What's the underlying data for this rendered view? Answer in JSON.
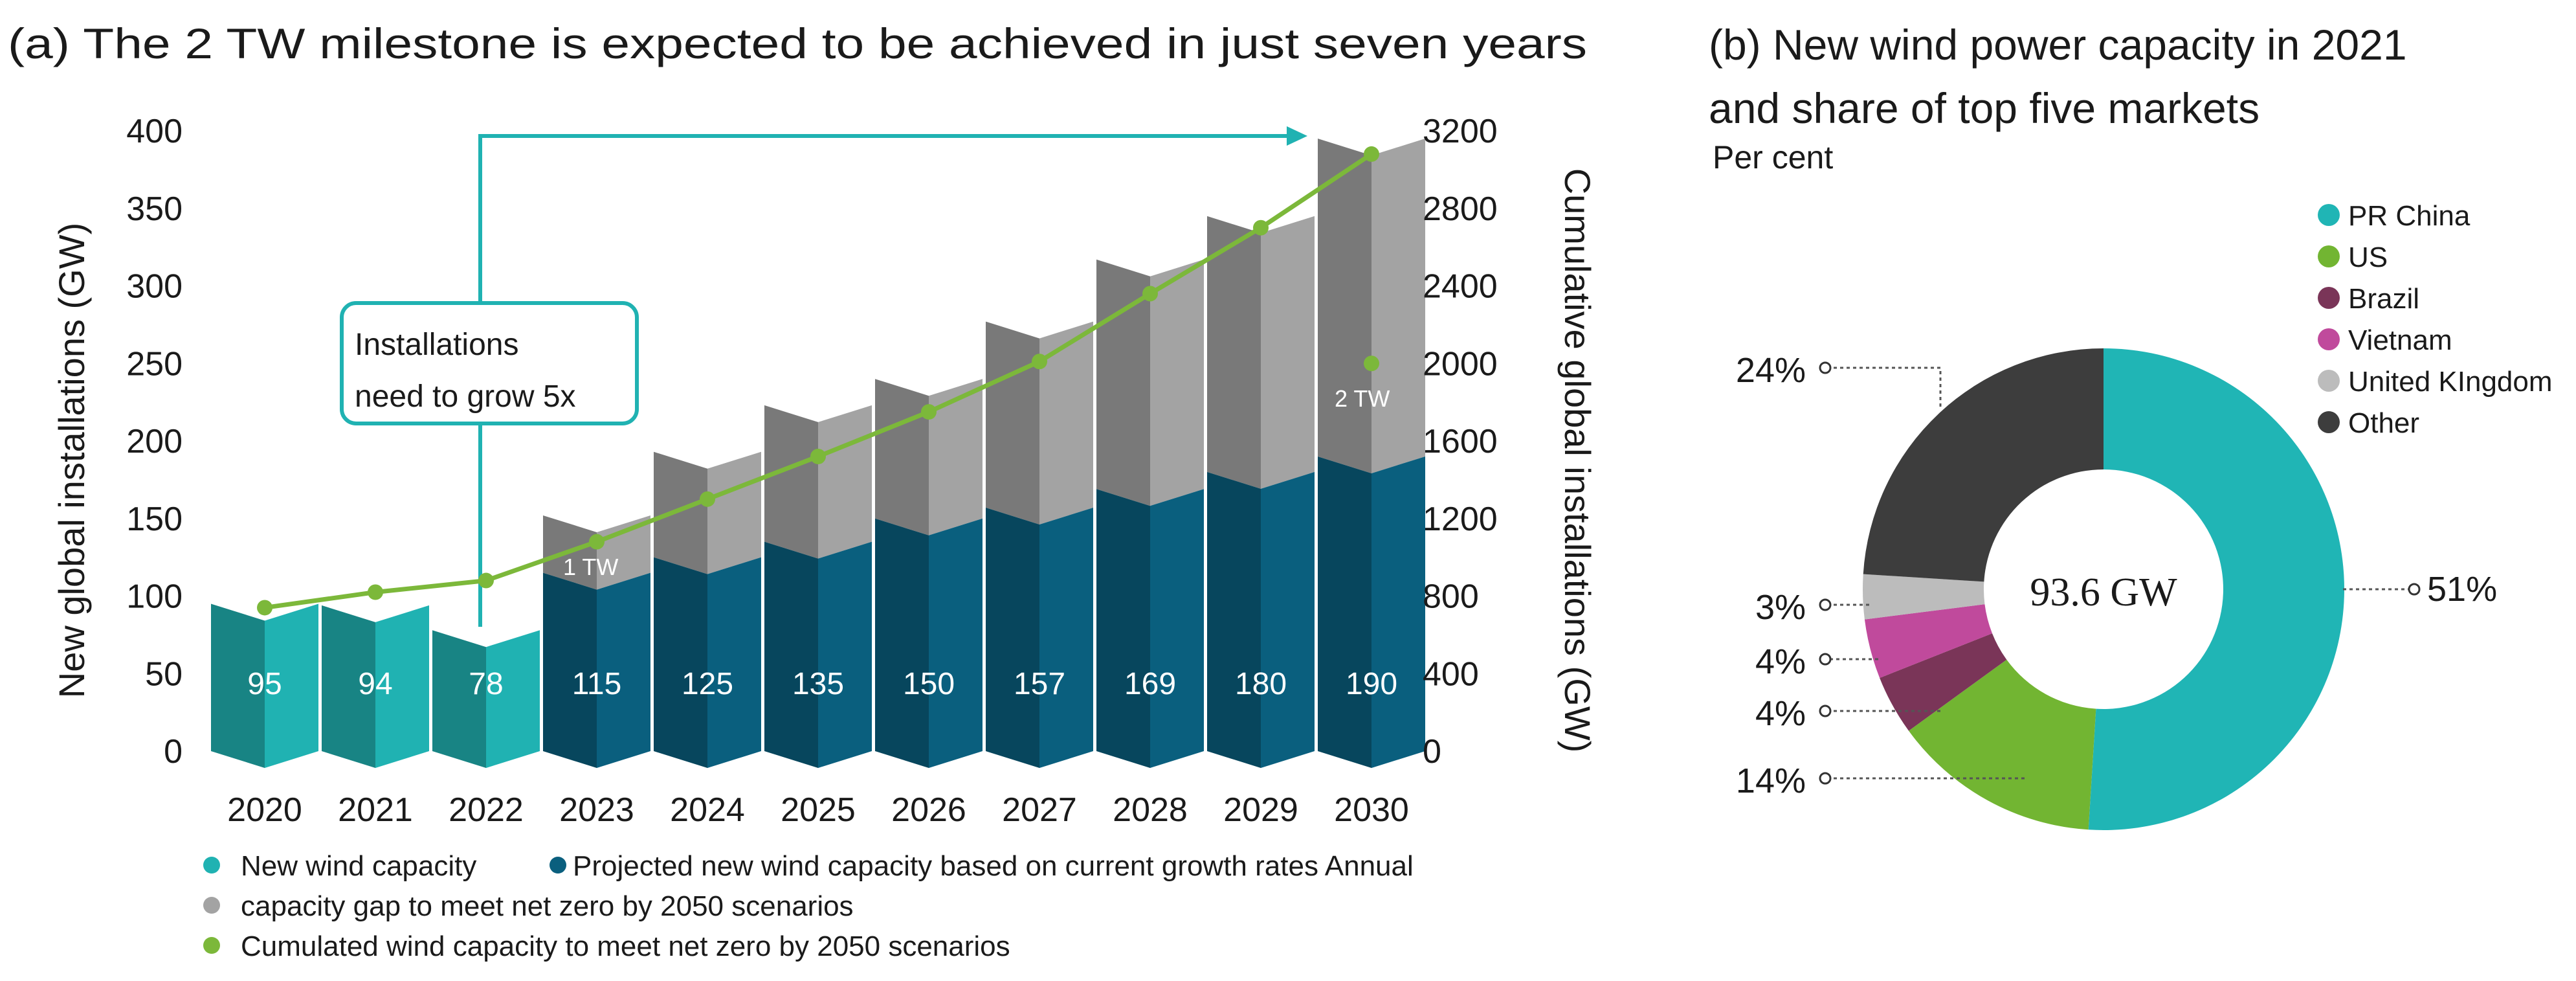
{
  "chart_data": [
    {
      "type": "bar",
      "title": "(a) The 2 TW milestone is expected to be achieved in just seven years",
      "categories": [
        "2020",
        "2021",
        "2022",
        "2023",
        "2024",
        "2025",
        "2026",
        "2027",
        "2028",
        "2029",
        "2030"
      ],
      "series": [
        {
          "name": "New wind capacity",
          "color": "#20b2b2",
          "values": [
            95,
            94,
            78,
            null,
            null,
            null,
            null,
            null,
            null,
            null,
            null
          ]
        },
        {
          "name": "Projected new wind capacity based on current growth rates",
          "color": "#0a5f7e",
          "values": [
            null,
            null,
            null,
            115,
            125,
            135,
            150,
            157,
            169,
            180,
            190
          ]
        },
        {
          "name": "Annual capacity gap to meet net zero by 2050 scenarios",
          "color": "#a3a3a3",
          "values": [
            null,
            null,
            null,
            37,
            68,
            88,
            90,
            120,
            148,
            165,
            205
          ]
        },
        {
          "name": "Cumulated wind capacity to meet net zero by 2050 scenarios",
          "color": "#7cb83a",
          "axis": "right",
          "values": [
            740,
            820,
            880,
            1080,
            1300,
            1520,
            1750,
            2010,
            2360,
            2700,
            3080
          ]
        }
      ],
      "bar_labels": [
        "95",
        "94",
        "78",
        "115",
        "125",
        "135",
        "150",
        "157",
        "169",
        "180",
        "190"
      ],
      "ylabel": "New global installations (GW)",
      "ylabel_right": "Cumulative global installations (GW)",
      "ylim": [
        0,
        400
      ],
      "yticks": [
        "0",
        "50",
        "100",
        "150",
        "200",
        "250",
        "300",
        "350",
        "400"
      ],
      "ylim_right": [
        0,
        3200
      ],
      "yticks_right": [
        "0",
        "400",
        "800",
        "1200",
        "1600",
        "2000",
        "2400",
        "2800",
        "3200"
      ],
      "annotations": {
        "callout_line1": "Installations",
        "callout_line2": "need to grow 5x",
        "tw1": "1 TW",
        "tw2": "2 TW"
      },
      "legend": {
        "new": "New wind capacity",
        "projected": "Projected new wind capacity  based on current growth rates  Annual",
        "gap": "capacity  gap to meet net zero by 2050 scenarios",
        "cumulative": "Cumulated wind capacity  to meet net zero by 2050 scenarios"
      }
    },
    {
      "type": "pie",
      "title_line1": "(b) New wind power capacity in 2021",
      "title_line2": "and share of top five markets",
      "subtitle": "Per cent",
      "center_label": "93.6 GW",
      "categories": [
        "PR China",
        "US",
        "Brazil",
        "Vietnam",
        "United KIngdom",
        "Other"
      ],
      "values": [
        51,
        14,
        4,
        4,
        3,
        24
      ],
      "labels": [
        "51%",
        "14%",
        "4%",
        "4%",
        "3%",
        "24%"
      ],
      "colors": [
        "#20b5b5",
        "#72b532",
        "#7a3558",
        "#c04a9c",
        "#bcbcbc",
        "#3d3d3d"
      ]
    }
  ]
}
